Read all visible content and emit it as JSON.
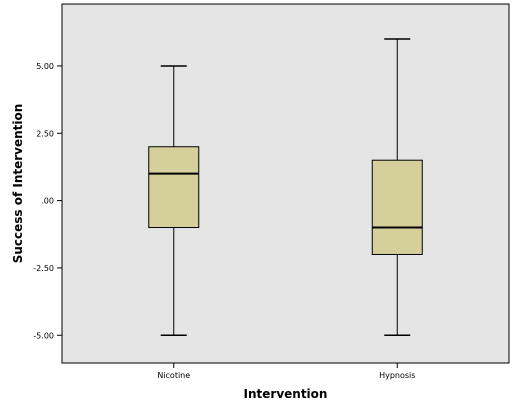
{
  "chart_data": {
    "type": "boxplot",
    "xlabel": "Intervention",
    "ylabel": "Success of Intervention",
    "ylim": [
      -6.03,
      7.3
    ],
    "yticks": [
      5.0,
      2.5,
      0.0,
      -2.5,
      -5.0
    ],
    "ytick_labels": [
      "5.00",
      "2.50",
      ".00",
      "-2.50",
      "-5.00"
    ],
    "categories": [
      "Nicotine",
      "Hypnosis"
    ],
    "boxes": [
      {
        "category": "Nicotine",
        "min": -5,
        "q1": -1,
        "median": 1,
        "q3": 2,
        "max": 5
      },
      {
        "category": "Hypnosis",
        "min": -5,
        "q1": -2,
        "median": -1,
        "q3": 1.5,
        "max": 6
      }
    ],
    "colors": {
      "plot_background": "#e5e5e5",
      "box_fill": "#d4cf9b",
      "line": "#000000"
    },
    "grid": false,
    "legend": "none"
  }
}
